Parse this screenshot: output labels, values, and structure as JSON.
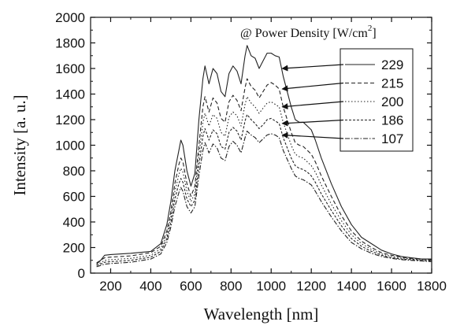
{
  "chart_data": {
    "type": "line",
    "title": "",
    "xlabel": "Wavelength [nm]",
    "ylabel": "Intensity [a. u.]",
    "xlim": [
      100,
      1800
    ],
    "ylim": [
      0,
      2000
    ],
    "xticks": [
      200,
      400,
      600,
      800,
      1000,
      1200,
      1400,
      1600,
      1800
    ],
    "yticks": [
      0,
      200,
      400,
      600,
      800,
      1000,
      1200,
      1400,
      1600,
      1800,
      2000
    ],
    "legend_header": {
      "main": "@ Power Density [W/cm",
      "sup": "2",
      "close": "]"
    },
    "legend_position": "right",
    "series": [
      {
        "name": "229",
        "style": "solid",
        "label_point": [
          1040,
          1600
        ],
        "points": [
          [
            130,
            70
          ],
          [
            150,
            100
          ],
          [
            170,
            140
          ],
          [
            200,
            145
          ],
          [
            300,
            155
          ],
          [
            400,
            170
          ],
          [
            450,
            230
          ],
          [
            480,
            380
          ],
          [
            500,
            560
          ],
          [
            520,
            800
          ],
          [
            540,
            960
          ],
          [
            550,
            1040
          ],
          [
            560,
            1000
          ],
          [
            580,
            800
          ],
          [
            600,
            680
          ],
          [
            620,
            780
          ],
          [
            640,
            1200
          ],
          [
            660,
            1520
          ],
          [
            670,
            1620
          ],
          [
            690,
            1480
          ],
          [
            710,
            1600
          ],
          [
            730,
            1560
          ],
          [
            750,
            1420
          ],
          [
            770,
            1380
          ],
          [
            790,
            1560
          ],
          [
            810,
            1620
          ],
          [
            830,
            1580
          ],
          [
            850,
            1480
          ],
          [
            870,
            1700
          ],
          [
            880,
            1780
          ],
          [
            900,
            1700
          ],
          [
            920,
            1680
          ],
          [
            940,
            1600
          ],
          [
            960,
            1660
          ],
          [
            980,
            1720
          ],
          [
            1000,
            1720
          ],
          [
            1020,
            1700
          ],
          [
            1040,
            1690
          ],
          [
            1060,
            1540
          ],
          [
            1080,
            1420
          ],
          [
            1100,
            1300
          ],
          [
            1120,
            1200
          ],
          [
            1140,
            1180
          ],
          [
            1160,
            1180
          ],
          [
            1180,
            1150
          ],
          [
            1200,
            1120
          ],
          [
            1220,
            1040
          ],
          [
            1250,
            900
          ],
          [
            1300,
            700
          ],
          [
            1350,
            520
          ],
          [
            1400,
            380
          ],
          [
            1450,
            280
          ],
          [
            1500,
            230
          ],
          [
            1550,
            180
          ],
          [
            1600,
            150
          ],
          [
            1650,
            130
          ],
          [
            1700,
            120
          ],
          [
            1750,
            110
          ],
          [
            1800,
            110
          ]
        ]
      },
      {
        "name": "215",
        "style": "dashed",
        "label_point": [
          1040,
          1440
        ],
        "points": [
          [
            130,
            80
          ],
          [
            150,
            100
          ],
          [
            170,
            120
          ],
          [
            200,
            125
          ],
          [
            300,
            135
          ],
          [
            400,
            160
          ],
          [
            450,
            210
          ],
          [
            480,
            330
          ],
          [
            500,
            480
          ],
          [
            520,
            700
          ],
          [
            540,
            850
          ],
          [
            550,
            900
          ],
          [
            560,
            870
          ],
          [
            580,
            700
          ],
          [
            600,
            600
          ],
          [
            620,
            680
          ],
          [
            640,
            1000
          ],
          [
            660,
            1300
          ],
          [
            670,
            1380
          ],
          [
            690,
            1260
          ],
          [
            710,
            1370
          ],
          [
            730,
            1330
          ],
          [
            750,
            1210
          ],
          [
            770,
            1180
          ],
          [
            790,
            1340
          ],
          [
            810,
            1390
          ],
          [
            830,
            1350
          ],
          [
            850,
            1270
          ],
          [
            870,
            1450
          ],
          [
            880,
            1520
          ],
          [
            900,
            1460
          ],
          [
            920,
            1430
          ],
          [
            940,
            1370
          ],
          [
            960,
            1420
          ],
          [
            980,
            1470
          ],
          [
            1000,
            1490
          ],
          [
            1020,
            1470
          ],
          [
            1040,
            1440
          ],
          [
            1060,
            1300
          ],
          [
            1080,
            1200
          ],
          [
            1100,
            1100
          ],
          [
            1120,
            1020
          ],
          [
            1140,
            1000
          ],
          [
            1160,
            990
          ],
          [
            1180,
            960
          ],
          [
            1200,
            930
          ],
          [
            1220,
            870
          ],
          [
            1250,
            760
          ],
          [
            1300,
            600
          ],
          [
            1350,
            450
          ],
          [
            1400,
            330
          ],
          [
            1450,
            250
          ],
          [
            1500,
            200
          ],
          [
            1550,
            160
          ],
          [
            1600,
            140
          ],
          [
            1650,
            125
          ],
          [
            1700,
            115
          ],
          [
            1750,
            110
          ],
          [
            1800,
            105
          ]
        ]
      },
      {
        "name": "200",
        "style": "dotted",
        "label_point": [
          1040,
          1300
        ],
        "points": [
          [
            130,
            70
          ],
          [
            150,
            80
          ],
          [
            170,
            100
          ],
          [
            200,
            105
          ],
          [
            300,
            115
          ],
          [
            400,
            140
          ],
          [
            450,
            190
          ],
          [
            480,
            300
          ],
          [
            500,
            440
          ],
          [
            520,
            640
          ],
          [
            540,
            770
          ],
          [
            550,
            820
          ],
          [
            560,
            790
          ],
          [
            580,
            640
          ],
          [
            600,
            560
          ],
          [
            620,
            620
          ],
          [
            640,
            920
          ],
          [
            660,
            1180
          ],
          [
            670,
            1250
          ],
          [
            690,
            1150
          ],
          [
            710,
            1240
          ],
          [
            730,
            1210
          ],
          [
            750,
            1100
          ],
          [
            770,
            1070
          ],
          [
            790,
            1220
          ],
          [
            810,
            1260
          ],
          [
            830,
            1230
          ],
          [
            850,
            1150
          ],
          [
            870,
            1320
          ],
          [
            880,
            1380
          ],
          [
            900,
            1330
          ],
          [
            920,
            1300
          ],
          [
            940,
            1250
          ],
          [
            960,
            1290
          ],
          [
            980,
            1330
          ],
          [
            1000,
            1340
          ],
          [
            1020,
            1320
          ],
          [
            1040,
            1300
          ],
          [
            1060,
            1180
          ],
          [
            1080,
            1090
          ],
          [
            1100,
            1000
          ],
          [
            1120,
            930
          ],
          [
            1140,
            910
          ],
          [
            1160,
            900
          ],
          [
            1180,
            870
          ],
          [
            1200,
            840
          ],
          [
            1220,
            790
          ],
          [
            1250,
            690
          ],
          [
            1300,
            540
          ],
          [
            1350,
            410
          ],
          [
            1400,
            300
          ],
          [
            1450,
            230
          ],
          [
            1500,
            185
          ],
          [
            1550,
            150
          ],
          [
            1600,
            130
          ],
          [
            1650,
            118
          ],
          [
            1700,
            110
          ],
          [
            1750,
            105
          ],
          [
            1800,
            100
          ]
        ]
      },
      {
        "name": "186",
        "style": "dashed-fine",
        "label_point": [
          1040,
          1170
        ],
        "points": [
          [
            130,
            60
          ],
          [
            150,
            70
          ],
          [
            170,
            85
          ],
          [
            200,
            90
          ],
          [
            300,
            100
          ],
          [
            400,
            125
          ],
          [
            450,
            170
          ],
          [
            480,
            270
          ],
          [
            500,
            400
          ],
          [
            520,
            580
          ],
          [
            540,
            700
          ],
          [
            550,
            740
          ],
          [
            560,
            710
          ],
          [
            580,
            580
          ],
          [
            600,
            520
          ],
          [
            620,
            570
          ],
          [
            640,
            840
          ],
          [
            660,
            1070
          ],
          [
            670,
            1130
          ],
          [
            690,
            1040
          ],
          [
            710,
            1120
          ],
          [
            730,
            1090
          ],
          [
            750,
            990
          ],
          [
            770,
            970
          ],
          [
            790,
            1100
          ],
          [
            810,
            1140
          ],
          [
            830,
            1110
          ],
          [
            850,
            1040
          ],
          [
            870,
            1190
          ],
          [
            880,
            1240
          ],
          [
            900,
            1200
          ],
          [
            920,
            1170
          ],
          [
            940,
            1130
          ],
          [
            960,
            1160
          ],
          [
            980,
            1200
          ],
          [
            1000,
            1210
          ],
          [
            1020,
            1190
          ],
          [
            1040,
            1170
          ],
          [
            1060,
            1060
          ],
          [
            1080,
            980
          ],
          [
            1100,
            900
          ],
          [
            1120,
            840
          ],
          [
            1140,
            820
          ],
          [
            1160,
            810
          ],
          [
            1180,
            790
          ],
          [
            1200,
            760
          ],
          [
            1220,
            710
          ],
          [
            1250,
            620
          ],
          [
            1300,
            490
          ],
          [
            1350,
            370
          ],
          [
            1400,
            270
          ],
          [
            1450,
            210
          ],
          [
            1500,
            170
          ],
          [
            1550,
            140
          ],
          [
            1600,
            120
          ],
          [
            1650,
            110
          ],
          [
            1700,
            105
          ],
          [
            1750,
            100
          ],
          [
            1800,
            95
          ]
        ]
      },
      {
        "name": "107",
        "style": "dashdot",
        "label_point": [
          1040,
          1080
        ],
        "points": [
          [
            130,
            50
          ],
          [
            150,
            60
          ],
          [
            170,
            70
          ],
          [
            200,
            75
          ],
          [
            300,
            85
          ],
          [
            400,
            110
          ],
          [
            450,
            150
          ],
          [
            480,
            240
          ],
          [
            500,
            360
          ],
          [
            520,
            520
          ],
          [
            540,
            630
          ],
          [
            550,
            670
          ],
          [
            560,
            640
          ],
          [
            580,
            520
          ],
          [
            600,
            470
          ],
          [
            620,
            520
          ],
          [
            640,
            760
          ],
          [
            660,
            960
          ],
          [
            670,
            1020
          ],
          [
            690,
            940
          ],
          [
            710,
            1010
          ],
          [
            730,
            980
          ],
          [
            750,
            900
          ],
          [
            770,
            880
          ],
          [
            790,
            990
          ],
          [
            810,
            1030
          ],
          [
            830,
            1000
          ],
          [
            850,
            940
          ],
          [
            870,
            1060
          ],
          [
            880,
            1110
          ],
          [
            900,
            1080
          ],
          [
            920,
            1060
          ],
          [
            940,
            1020
          ],
          [
            960,
            1050
          ],
          [
            980,
            1080
          ],
          [
            1000,
            1090
          ],
          [
            1020,
            1080
          ],
          [
            1040,
            1060
          ],
          [
            1060,
            960
          ],
          [
            1080,
            890
          ],
          [
            1100,
            820
          ],
          [
            1120,
            760
          ],
          [
            1140,
            740
          ],
          [
            1160,
            730
          ],
          [
            1180,
            710
          ],
          [
            1200,
            690
          ],
          [
            1220,
            640
          ],
          [
            1250,
            560
          ],
          [
            1300,
            440
          ],
          [
            1350,
            330
          ],
          [
            1400,
            240
          ],
          [
            1450,
            190
          ],
          [
            1500,
            155
          ],
          [
            1550,
            130
          ],
          [
            1600,
            115
          ],
          [
            1650,
            105
          ],
          [
            1700,
            100
          ],
          [
            1750,
            95
          ],
          [
            1800,
            90
          ]
        ]
      }
    ]
  }
}
